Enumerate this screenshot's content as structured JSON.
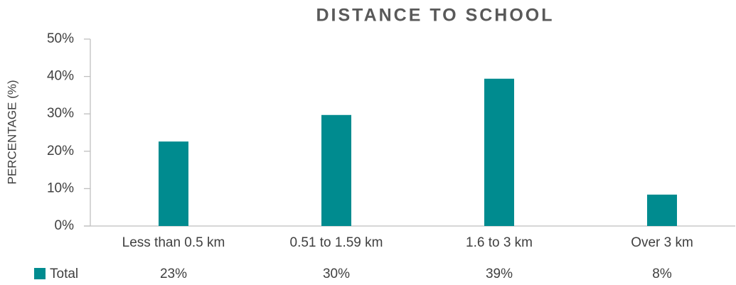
{
  "chart_data": {
    "type": "bar",
    "title": "DISTANCE TO SCHOOL",
    "y_label": "PERCENTAGE (%)",
    "categories": [
      "Less than 0.5 km",
      "0.51 to 1.59 km",
      "1.6 to 3 km",
      "Over 3 km"
    ],
    "series": [
      {
        "name": "Total",
        "color": "#008b8f",
        "values": [
          22.6,
          29.7,
          39.4,
          8.4
        ],
        "value_labels": [
          "23%",
          "30%",
          "39%",
          "8%"
        ]
      }
    ],
    "ylim": [
      0,
      50
    ],
    "yticks": [
      {
        "value": 0,
        "label": "0%"
      },
      {
        "value": 10,
        "label": "10%"
      },
      {
        "value": 20,
        "label": "20%"
      },
      {
        "value": 30,
        "label": "30%"
      },
      {
        "value": 40,
        "label": "40%"
      },
      {
        "value": 50,
        "label": "50%"
      }
    ],
    "grid": false
  }
}
